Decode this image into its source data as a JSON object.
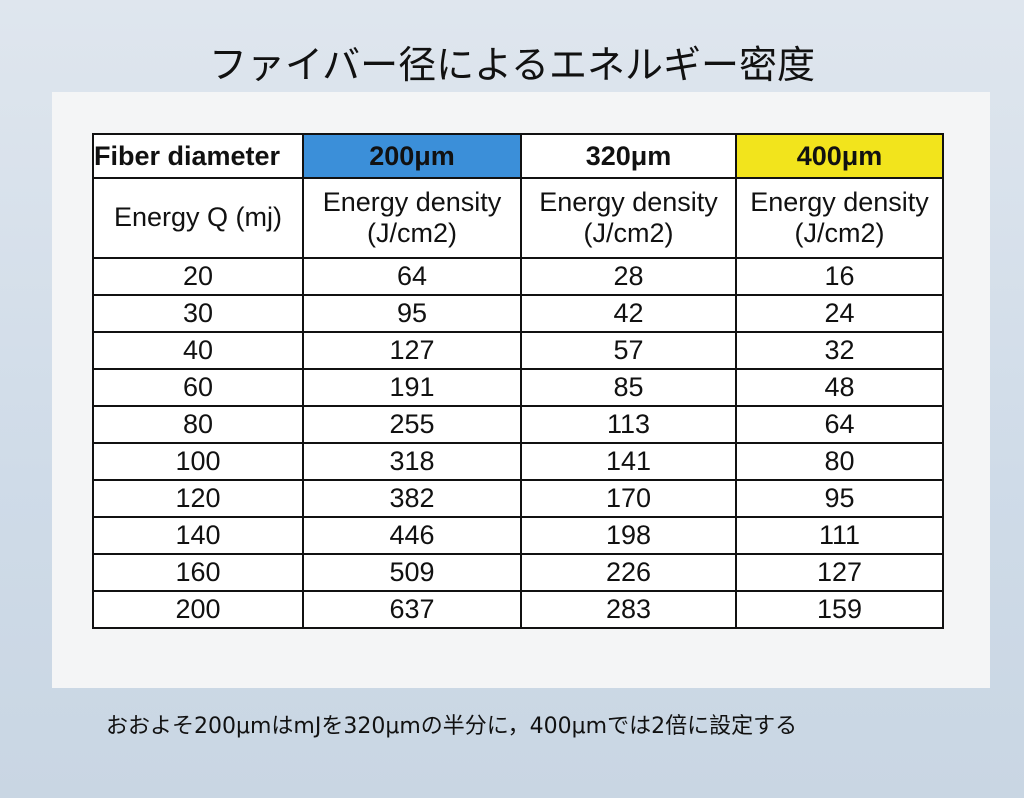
{
  "title": "ファイバー径によるエネルギー密度",
  "table": {
    "header": [
      "Fiber diameter",
      "200μm",
      "320μm",
      "400μm"
    ],
    "subheader": [
      "Energy Q (mj)",
      "Energy density (J/cm2)",
      "Energy density (J/cm2)",
      "Energy density (J/cm2)"
    ],
    "rows": [
      [
        20,
        64,
        28,
        16
      ],
      [
        30,
        95,
        42,
        24
      ],
      [
        40,
        127,
        57,
        32
      ],
      [
        60,
        191,
        85,
        48
      ],
      [
        80,
        255,
        113,
        64
      ],
      [
        100,
        318,
        141,
        80
      ],
      [
        120,
        382,
        170,
        95
      ],
      [
        140,
        446,
        198,
        111
      ],
      [
        160,
        509,
        226,
        127
      ],
      [
        200,
        637,
        283,
        159
      ]
    ]
  },
  "note": "おおよそ200μmはmJを320μmの半分に，400μmでは2倍に設定する"
}
